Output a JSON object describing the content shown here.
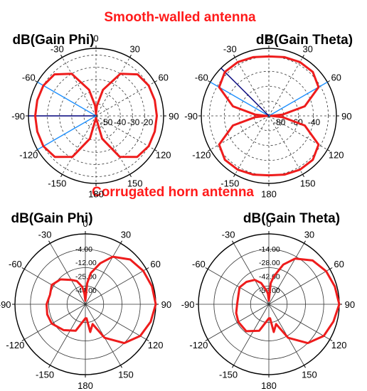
{
  "figure": {
    "top_heading": "Smooth-walled antenna",
    "middle_heading": "Corrugated horn antenna"
  },
  "colors": {
    "pattern": "#ee1c1c",
    "heading": "#ff1a1a",
    "marker_blue": "#1e90ff",
    "marker_navy": "#00007a",
    "grid": "#333333"
  },
  "chart_data": [
    {
      "type": "polar",
      "title": "dB(Gain Phi)",
      "angle_labels": [
        "0",
        "30",
        "60",
        "90",
        "120",
        "150",
        "180",
        "-150",
        "-120",
        "-90",
        "-60",
        "-30"
      ],
      "radial_labels": [
        "-50",
        "-40",
        "-30",
        "-20"
      ],
      "grid": "dashed",
      "series": [
        {
          "pattern": "figure-eight, lobes at ±90°, nulls at 0° and 180°",
          "angle_deg": [
            -180,
            -165,
            -150,
            -135,
            -120,
            -105,
            -90,
            -75,
            -60,
            -45,
            -30,
            -15,
            -5,
            0,
            5,
            15,
            30,
            45,
            60,
            75,
            90,
            105,
            120,
            135,
            150,
            165,
            180
          ],
          "radius_frac": [
            0.03,
            0.35,
            0.7,
            0.86,
            0.9,
            0.9,
            0.9,
            0.9,
            0.9,
            0.87,
            0.72,
            0.4,
            0.15,
            0.03,
            0.15,
            0.4,
            0.72,
            0.87,
            0.9,
            0.9,
            0.9,
            0.9,
            0.9,
            0.86,
            0.7,
            0.35,
            0.03
          ]
        }
      ],
      "markers": [
        {
          "angle": -60,
          "color": "blue"
        },
        {
          "angle": -90,
          "color": "navy"
        },
        {
          "angle": -120,
          "color": "blue"
        }
      ]
    },
    {
      "type": "polar",
      "title": "dB(Gain Theta)",
      "angle_labels": [
        "0",
        "30",
        "60",
        "90",
        "120",
        "150",
        "180",
        "-150",
        "-120",
        "-90",
        "-60",
        "-30"
      ],
      "radial_labels": [
        "-80",
        "-60",
        "-40"
      ],
      "grid": "dashed",
      "series": [
        {
          "pattern": "two lobes at 0° and 180°, nulls at ±90°",
          "angle_deg": [
            -180,
            -165,
            -150,
            -135,
            -120,
            -105,
            -95,
            -90,
            -85,
            -75,
            -60,
            -45,
            -30,
            -15,
            0,
            15,
            30,
            45,
            60,
            75,
            85,
            90,
            95,
            105,
            120,
            135,
            150,
            165,
            180
          ],
          "radius_frac": [
            0.88,
            0.9,
            0.92,
            0.92,
            0.85,
            0.55,
            0.2,
            0.03,
            0.2,
            0.55,
            0.85,
            0.92,
            0.92,
            0.9,
            0.88,
            0.9,
            0.92,
            0.92,
            0.85,
            0.55,
            0.2,
            0.03,
            0.2,
            0.55,
            0.85,
            0.92,
            0.92,
            0.9,
            0.88
          ]
        }
      ],
      "markers": [
        {
          "angle": -60,
          "color": "blue"
        },
        {
          "angle": -45,
          "color": "navy"
        },
        {
          "angle": 60,
          "color": "blue"
        }
      ]
    },
    {
      "type": "polar",
      "title": "dB(Gain Phi)",
      "angle_labels": [
        "0",
        "30",
        "60",
        "90",
        "120",
        "150",
        "180",
        "-150",
        "-120",
        "-90",
        "-60",
        "-30"
      ],
      "radial_labels": [
        "-4.00",
        "-12.00",
        "-25.00",
        "-44.00"
      ],
      "grid": "solid",
      "series": [
        {
          "pattern": "main lobe toward 90°, ragged back lobes",
          "angle_deg": [
            -180,
            -160,
            -140,
            -120,
            -105,
            -90,
            -75,
            -60,
            -45,
            -30,
            -20,
            -10,
            -5,
            0,
            5,
            10,
            20,
            30,
            45,
            60,
            75,
            90,
            105,
            120,
            135,
            150,
            160,
            170,
            175,
            180
          ],
          "radius_frac": [
            0.2,
            0.4,
            0.48,
            0.55,
            0.56,
            0.55,
            0.52,
            0.55,
            0.5,
            0.4,
            0.35,
            0.25,
            0.15,
            0.05,
            0.3,
            0.45,
            0.62,
            0.78,
            0.9,
            0.95,
            0.98,
            1.0,
            0.96,
            0.9,
            0.78,
            0.55,
            0.3,
            0.4,
            0.2,
            0.2
          ]
        }
      ]
    },
    {
      "type": "polar",
      "title": "dB(Gain Theta)",
      "angle_labels": [
        "0",
        "30",
        "60",
        "90",
        "120",
        "150",
        "180",
        "-150",
        "-120",
        "-90",
        "-60",
        "-30"
      ],
      "radial_labels": [
        "-14.00",
        "-28.00",
        "-42.00",
        "-56.00"
      ],
      "grid": "solid",
      "series": [
        {
          "pattern": "main lobe toward 90°, ragged back lobes",
          "angle_deg": [
            -180,
            -160,
            -140,
            -120,
            -105,
            -90,
            -75,
            -60,
            -45,
            -30,
            -20,
            -10,
            -5,
            0,
            5,
            10,
            20,
            30,
            45,
            60,
            75,
            90,
            105,
            120,
            135,
            150,
            160,
            170,
            175,
            180
          ],
          "radius_frac": [
            0.2,
            0.4,
            0.5,
            0.5,
            0.48,
            0.45,
            0.45,
            0.48,
            0.45,
            0.4,
            0.32,
            0.2,
            0.15,
            0.05,
            0.3,
            0.4,
            0.6,
            0.75,
            0.88,
            0.94,
            0.97,
            1.0,
            0.95,
            0.9,
            0.78,
            0.55,
            0.3,
            0.4,
            0.2,
            0.2
          ]
        }
      ]
    }
  ]
}
